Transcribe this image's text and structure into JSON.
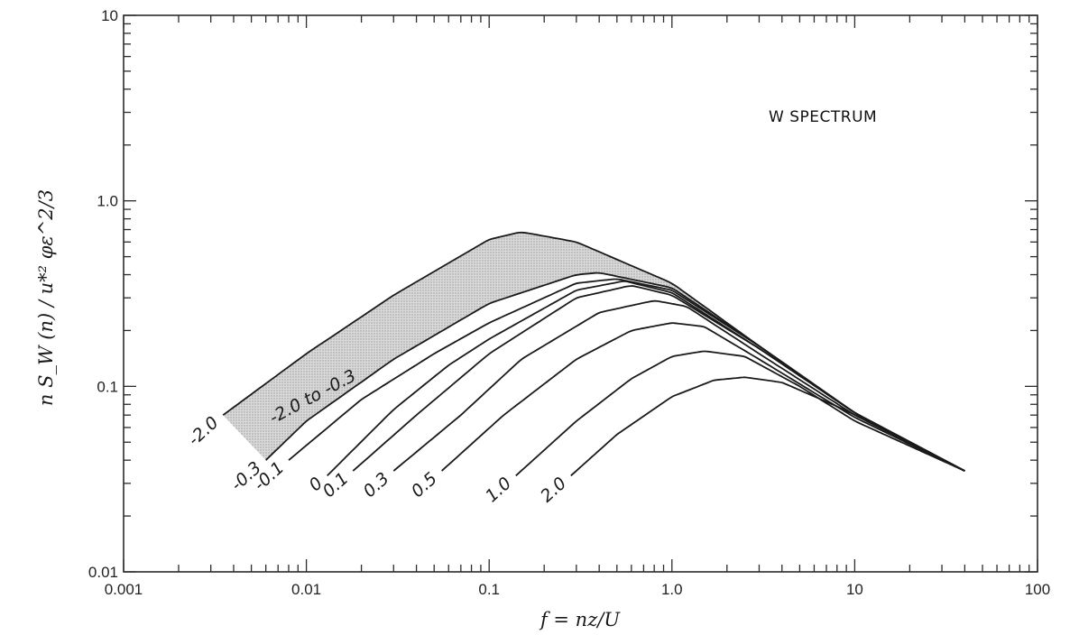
{
  "chart_data": {
    "type": "line",
    "title": "",
    "annotation": "W SPECTRUM",
    "xlabel": "f = nz/U",
    "ylabel": "n S_W (n) / u*² φε^2/3",
    "xscale": "log",
    "yscale": "log",
    "xlim": [
      0.001,
      100
    ],
    "ylim": [
      0.01,
      10
    ],
    "x_ticks": [
      "0.001",
      "0.01",
      "0.1",
      "1.0",
      "10",
      "100"
    ],
    "y_ticks": [
      "0.01",
      "0.1",
      "1.0",
      "10"
    ],
    "band_label": "-2.0 to -0.3",
    "series": [
      {
        "name": "-2.0",
        "x": [
          0.0035,
          0.01,
          0.03,
          0.1,
          0.15,
          0.3,
          1.0,
          3.0,
          10,
          40
        ],
        "y": [
          0.07,
          0.15,
          0.31,
          0.62,
          0.68,
          0.6,
          0.36,
          0.165,
          0.072,
          0.035
        ]
      },
      {
        "name": "-0.3",
        "x": [
          0.006,
          0.01,
          0.03,
          0.1,
          0.3,
          0.4,
          1.0,
          3.0,
          10,
          40
        ],
        "y": [
          0.04,
          0.065,
          0.14,
          0.28,
          0.4,
          0.41,
          0.34,
          0.165,
          0.072,
          0.035
        ]
      },
      {
        "name": "-0.1",
        "x": [
          0.008,
          0.02,
          0.05,
          0.1,
          0.3,
          0.5,
          1.0,
          3.0,
          10,
          40
        ],
        "y": [
          0.04,
          0.085,
          0.15,
          0.22,
          0.36,
          0.38,
          0.33,
          0.165,
          0.072,
          0.035
        ]
      },
      {
        "name": "0",
        "x": [
          0.013,
          0.03,
          0.06,
          0.1,
          0.3,
          0.55,
          1.0,
          3.0,
          10,
          40
        ],
        "y": [
          0.033,
          0.075,
          0.13,
          0.18,
          0.33,
          0.37,
          0.32,
          0.16,
          0.072,
          0.035
        ]
      },
      {
        "name": "0.1",
        "x": [
          0.018,
          0.04,
          0.1,
          0.3,
          0.6,
          1.0,
          3.0,
          10,
          40
        ],
        "y": [
          0.035,
          0.07,
          0.15,
          0.3,
          0.35,
          0.31,
          0.16,
          0.072,
          0.035
        ]
      },
      {
        "name": "0.3",
        "x": [
          0.03,
          0.07,
          0.15,
          0.4,
          0.8,
          1.2,
          3.0,
          10,
          40
        ],
        "y": [
          0.035,
          0.07,
          0.14,
          0.25,
          0.29,
          0.27,
          0.15,
          0.07,
          0.035
        ]
      },
      {
        "name": "0.5",
        "x": [
          0.055,
          0.12,
          0.3,
          0.6,
          1.0,
          1.5,
          3.0,
          10,
          40
        ],
        "y": [
          0.035,
          0.07,
          0.14,
          0.2,
          0.22,
          0.21,
          0.14,
          0.068,
          0.035
        ]
      },
      {
        "name": "1.0",
        "x": [
          0.14,
          0.3,
          0.6,
          1.0,
          1.5,
          2.5,
          5.0,
          10,
          40
        ],
        "y": [
          0.033,
          0.065,
          0.11,
          0.145,
          0.155,
          0.145,
          0.1,
          0.065,
          0.035
        ]
      },
      {
        "name": "2.0",
        "x": [
          0.28,
          0.5,
          1.0,
          1.7,
          2.5,
          4.0,
          8.0,
          15,
          40
        ],
        "y": [
          0.033,
          0.055,
          0.088,
          0.108,
          0.112,
          0.105,
          0.078,
          0.058,
          0.035
        ]
      }
    ]
  }
}
